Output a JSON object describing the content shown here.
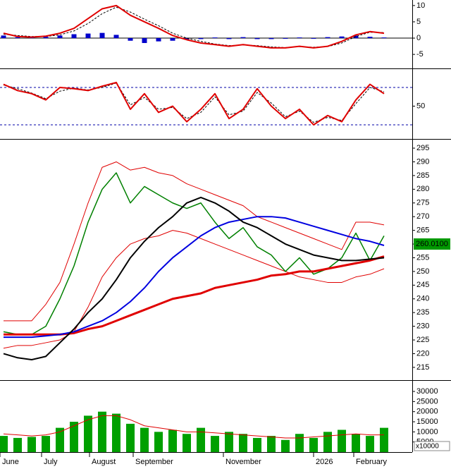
{
  "chart_data": [
    {
      "type": "line",
      "ylim": [
        -9.3,
        11.7
      ],
      "yticks": [
        10,
        5,
        0,
        -5
      ],
      "zero_line": true,
      "series": [
        {
          "style": "bar",
          "color": "#0000cc",
          "values": [
            0.8,
            0.3,
            0.2,
            0.4,
            0.8,
            1.2,
            1.4,
            1.6,
            1.0,
            -0.8,
            -1.5,
            -1.0,
            -0.8,
            -0.4,
            -0.3,
            0.2,
            -0.3,
            0.3,
            -0.3,
            -0.3,
            -0.2,
            0.2,
            -0.2,
            0.3,
            0.5,
            0.8,
            0.4,
            0.2
          ]
        },
        {
          "style": "dashed",
          "color": "#000000",
          "values": [
            1.2,
            0.8,
            0.5,
            0.5,
            1,
            2.2,
            4.5,
            7.5,
            9.5,
            8,
            5.8,
            3.8,
            1.5,
            0,
            -1,
            -1.8,
            -2.3,
            -2.1,
            -2.3,
            -2.7,
            -2.9,
            -2.6,
            -2.8,
            -2.6,
            -1.5,
            0.5,
            1.8,
            1.7
          ]
        },
        {
          "style": "solid",
          "color": "#e00000",
          "width": 2,
          "values": [
            1.5,
            0.5,
            0.3,
            0.6,
            1.5,
            3,
            6,
            9,
            10,
            7,
            5,
            3,
            0.8,
            -0.5,
            -1.5,
            -2,
            -2.5,
            -2,
            -2.5,
            -3,
            -3,
            -2.5,
            -3,
            -2.5,
            -1,
            1,
            2,
            1.5
          ]
        }
      ]
    },
    {
      "type": "line",
      "ylim": [
        -1.5,
        108.3
      ],
      "yticks": [
        50
      ],
      "levels": [
        20,
        80
      ],
      "level_color": "#0000aa",
      "series": [
        {
          "style": "dashed",
          "color": "#000000",
          "values": [
            84,
            78,
            71,
            62,
            74,
            79,
            76,
            80,
            87,
            52,
            64,
            45,
            48,
            30,
            40,
            65,
            36,
            42,
            72,
            55,
            33,
            42,
            24,
            32,
            27,
            54,
            80,
            73
          ]
        },
        {
          "style": "solid",
          "color": "#e00000",
          "width": 2,
          "values": [
            85,
            75,
            70,
            60,
            80,
            78,
            75,
            82,
            88,
            45,
            70,
            40,
            50,
            25,
            45,
            70,
            30,
            45,
            78,
            50,
            30,
            45,
            20,
            35,
            25,
            60,
            85,
            70
          ]
        }
      ]
    },
    {
      "type": "line",
      "ylim": [
        210.6,
        298.1
      ],
      "yticks": [
        295,
        290,
        285,
        280,
        275,
        270,
        265,
        260,
        255,
        250,
        245,
        240,
        235,
        230,
        225,
        220,
        215
      ],
      "last_value": 260.01,
      "last_value_label": "260.0100",
      "last_value_color": "#009900",
      "series": [
        {
          "style": "solid",
          "color": "#e00000",
          "width": 1,
          "values": [
            232,
            232,
            232,
            238,
            246,
            260,
            275,
            288,
            290,
            287,
            288,
            286,
            285,
            282,
            280,
            278,
            276,
            274,
            270,
            268,
            266,
            264,
            262,
            260,
            258,
            268,
            268,
            267
          ]
        },
        {
          "style": "solid",
          "color": "#e00000",
          "width": 1,
          "values": [
            222,
            223,
            223,
            224,
            225,
            228,
            237,
            248,
            255,
            260,
            262,
            263,
            265,
            264,
            262,
            260,
            258,
            256,
            254,
            252,
            250,
            248,
            247,
            246,
            246,
            248,
            249,
            251
          ]
        },
        {
          "style": "solid",
          "color": "#008000",
          "width": 1.5,
          "values": [
            228,
            227,
            227,
            230,
            240,
            252,
            268,
            280,
            286,
            275,
            281,
            278,
            275,
            273,
            275,
            268,
            262,
            266,
            259,
            256,
            250,
            255,
            249,
            251,
            255,
            264,
            254,
            263
          ]
        },
        {
          "style": "solid",
          "color": "#e00000",
          "width": 3,
          "values": [
            227,
            227,
            227,
            227,
            227,
            227.5,
            229,
            230,
            232,
            234,
            236,
            238,
            240,
            241,
            242,
            244,
            245,
            246,
            247,
            248.5,
            249,
            250,
            250,
            251,
            252,
            253,
            254,
            255.5
          ]
        },
        {
          "style": "solid",
          "color": "#0000e0",
          "width": 2,
          "values": [
            226,
            226,
            226,
            226.5,
            227,
            228,
            230,
            232,
            235,
            239,
            244,
            250,
            255,
            259,
            263,
            266,
            268,
            269,
            270,
            270,
            269.5,
            268,
            266.5,
            265,
            263.5,
            262,
            261,
            259.5
          ]
        },
        {
          "style": "solid",
          "color": "#000000",
          "width": 2,
          "values": [
            220,
            218.5,
            217.8,
            219,
            224,
            229,
            235,
            240,
            247,
            255,
            261,
            266,
            270,
            275,
            277,
            275,
            272,
            268,
            266,
            263,
            260,
            258,
            256,
            255,
            254,
            254,
            254.5,
            255
          ]
        }
      ]
    },
    {
      "type": "bar",
      "ylim": [
        0,
        34900
      ],
      "yticks": [
        30000,
        25000,
        20000,
        15000,
        10000,
        5000
      ],
      "unit_label": "x10000",
      "xticks": [
        {
          "value": -0.25,
          "label": "June"
        },
        {
          "value": 2.7,
          "label": "July"
        },
        {
          "value": 6.1,
          "label": "August"
        },
        {
          "value": 9.2,
          "label": "September"
        },
        {
          "value": 15.6,
          "label": "November"
        },
        {
          "value": 22,
          "label": "2026"
        },
        {
          "value": 24.85,
          "label": "February"
        }
      ],
      "series": [
        {
          "style": "bar",
          "color": "#00a000",
          "values": [
            8000,
            7000,
            7500,
            8000,
            12000,
            15000,
            18000,
            20000,
            19000,
            14000,
            12000,
            10000,
            11000,
            9000,
            12000,
            8000,
            10000,
            9000,
            7000,
            8000,
            6000,
            9000,
            7000,
            10000,
            11000,
            9000,
            8000,
            12000
          ]
        },
        {
          "style": "solid",
          "color": "#e00000",
          "width": 1,
          "values": [
            9000,
            8500,
            8000,
            8500,
            10000,
            13000,
            16000,
            18000,
            18000,
            16000,
            13000,
            12000,
            11000,
            10000,
            10000,
            9500,
            9000,
            8500,
            8000,
            7500,
            7000,
            7000,
            7500,
            8000,
            8500,
            9000,
            8500,
            8500
          ]
        }
      ]
    }
  ]
}
